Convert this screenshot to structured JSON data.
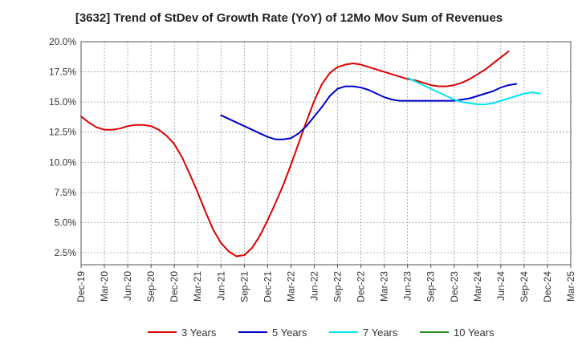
{
  "chart_data": {
    "type": "line",
    "title": "[3632]  Trend of StDev of Growth Rate (YoY) of 12Mo Mov Sum of Revenues",
    "xlabel": "",
    "ylabel": "",
    "ylim": [
      1.5,
      20.0
    ],
    "y_ticks": [
      2.5,
      5.0,
      7.5,
      10.0,
      12.5,
      15.0,
      17.5,
      20.0
    ],
    "y_tick_labels": [
      "2.5%",
      "5.0%",
      "7.5%",
      "10.0%",
      "12.5%",
      "15.0%",
      "17.5%",
      "20.0%"
    ],
    "x_start": "2019-12",
    "x_end": "2025-03",
    "x_ticks": [
      "Dec-19",
      "Mar-20",
      "Jun-20",
      "Sep-20",
      "Dec-20",
      "Mar-21",
      "Jun-21",
      "Sep-21",
      "Dec-21",
      "Mar-22",
      "Jun-22",
      "Sep-22",
      "Dec-22",
      "Mar-23",
      "Jun-23",
      "Sep-23",
      "Dec-23",
      "Mar-24",
      "Jun-24",
      "Sep-24",
      "Dec-24",
      "Mar-25"
    ],
    "grid": true,
    "legend_position": "bottom",
    "series": [
      {
        "name": "3 Years",
        "color": "#dd0000",
        "start_month_index": 0,
        "values": [
          13.8,
          13.3,
          12.9,
          12.7,
          12.7,
          12.8,
          13.0,
          13.1,
          13.1,
          13.0,
          12.7,
          12.2,
          11.5,
          10.4,
          9.0,
          7.5,
          5.9,
          4.4,
          3.3,
          2.6,
          2.2,
          2.3,
          2.9,
          3.9,
          5.2,
          6.6,
          8.1,
          9.8,
          11.6,
          13.4,
          15.1,
          16.5,
          17.4,
          17.9,
          18.1,
          18.2,
          18.1,
          17.9,
          17.7,
          17.5,
          17.3,
          17.1,
          16.9,
          16.8,
          16.6,
          16.4,
          16.3,
          16.3,
          16.4,
          16.6,
          16.9,
          17.3,
          17.7,
          18.2,
          18.7,
          19.2
        ]
      },
      {
        "name": "5 Years",
        "color": "#0000cc",
        "start_month_index": 18,
        "values": [
          13.9,
          13.6,
          13.3,
          13.0,
          12.7,
          12.4,
          12.1,
          11.9,
          11.9,
          12.0,
          12.4,
          13.0,
          13.8,
          14.6,
          15.5,
          16.1,
          16.3,
          16.3,
          16.2,
          16.0,
          15.7,
          15.4,
          15.2,
          15.1,
          15.1,
          15.1,
          15.1,
          15.1,
          15.1,
          15.1,
          15.1,
          15.2,
          15.3,
          15.5,
          15.7,
          15.9,
          16.2,
          16.4,
          16.5
        ]
      },
      {
        "name": "7 Years",
        "color": "#00e5ee",
        "start_month_index": 42,
        "values": [
          17.0,
          16.7,
          16.4,
          16.1,
          15.8,
          15.5,
          15.2,
          15.0,
          14.9,
          14.8,
          14.8,
          14.9,
          15.1,
          15.3,
          15.5,
          15.7,
          15.8,
          15.7
        ]
      },
      {
        "name": "10 Years",
        "color": "#228b22",
        "start_month_index": 0,
        "values": []
      }
    ]
  }
}
